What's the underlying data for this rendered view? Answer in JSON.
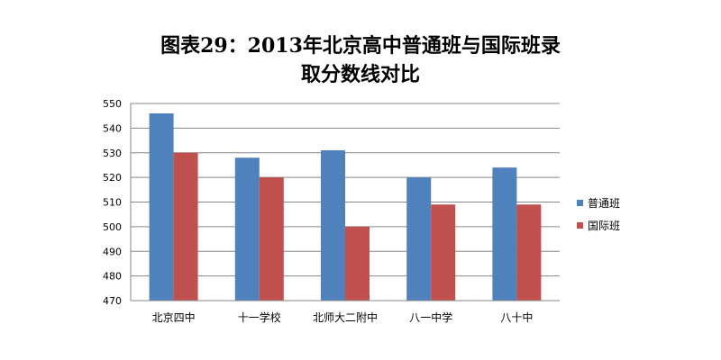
{
  "chart_data": {
    "type": "bar",
    "title_line1": "图表29：2013年北京高中普通班与国际班录",
    "title_line2": "取分数线对比",
    "categories": [
      "北京四中",
      "十一学校",
      "北师大二附中",
      "八一中学",
      "八十中"
    ],
    "series": [
      {
        "name": "普通班",
        "values": [
          546,
          528,
          531,
          520,
          524
        ],
        "color": "#4F81BD"
      },
      {
        "name": "国际班",
        "values": [
          530,
          520,
          500,
          509,
          509
        ],
        "color": "#C0504D"
      }
    ],
    "ylim": [
      470,
      550
    ],
    "yticks": [
      470,
      480,
      490,
      500,
      510,
      520,
      530,
      540,
      550
    ],
    "grid": true,
    "legend_position": "right",
    "xlabel": "",
    "ylabel": ""
  }
}
